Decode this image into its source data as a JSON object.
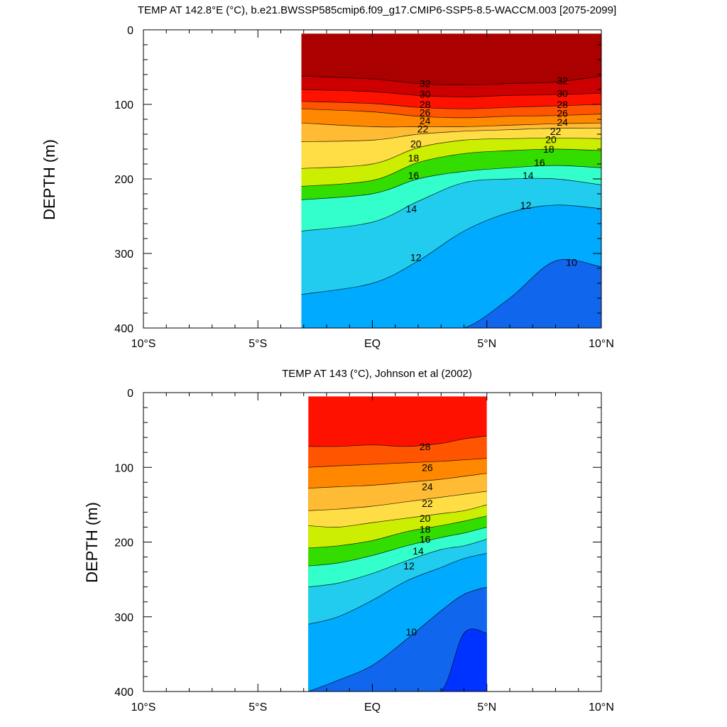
{
  "chart_data": [
    {
      "type": "contour",
      "title": "TEMP AT 142.8°E (°C), b.e21.BWSSP585cmip6.f09_g17.CMIP6-SSP5-8.5-WACCM.003 [2075-2099]",
      "xlabel": "",
      "ylabel": "DEPTH (m)",
      "xlim": [
        -10,
        10
      ],
      "ylim": [
        400,
        0
      ],
      "x_tick_values": [
        -10,
        -5,
        0,
        5,
        10
      ],
      "x_tick_labels": [
        "10°S",
        "5°S",
        "EQ",
        "5°N",
        "10°N"
      ],
      "y_tick_values": [
        0,
        100,
        200,
        300,
        400
      ],
      "y_tick_labels": [
        "0",
        "100",
        "200",
        "300",
        "400"
      ],
      "data_extent": {
        "lat": [
          -3.1,
          10
        ],
        "depth": [
          5,
          400
        ]
      },
      "x_nodes": [
        -3.1,
        0,
        2,
        4,
        6,
        8,
        10
      ],
      "isotherms": [
        {
          "value": 32,
          "depth": [
            62,
            66,
            72,
            74,
            72,
            70,
            62
          ]
        },
        {
          "value": 30,
          "depth": [
            80,
            83,
            88,
            90,
            88,
            87,
            85
          ]
        },
        {
          "value": 28,
          "depth": [
            96,
            99,
            104,
            106,
            104,
            102,
            100
          ]
        },
        {
          "value": 26,
          "depth": [
            106,
            110,
            116,
            118,
            116,
            115,
            113
          ]
        },
        {
          "value": 24,
          "depth": [
            125,
            130,
            130,
            130,
            128,
            126,
            125
          ]
        },
        {
          "value": 22,
          "depth": [
            150,
            148,
            140,
            136,
            134,
            132,
            132
          ]
        },
        {
          "value": 20,
          "depth": [
            186,
            180,
            158,
            148,
            146,
            145,
            146
          ]
        },
        {
          "value": 18,
          "depth": [
            210,
            202,
            178,
            166,
            162,
            160,
            162
          ]
        },
        {
          "value": 16,
          "depth": [
            228,
            220,
            200,
            190,
            185,
            182,
            185
          ]
        },
        {
          "value": 14,
          "depth": [
            270,
            258,
            230,
            205,
            200,
            200,
            208
          ]
        },
        {
          "value": 12,
          "depth": [
            355,
            340,
            310,
            270,
            245,
            235,
            240
          ]
        },
        {
          "value": 10,
          "depth": [
            400,
            400,
            400,
            400,
            360,
            310,
            318
          ]
        }
      ],
      "contour_labels": [
        {
          "text": "32",
          "lat": 2.3,
          "depth": 72
        },
        {
          "text": "30",
          "lat": 2.3,
          "depth": 86
        },
        {
          "text": "28",
          "lat": 2.3,
          "depth": 100
        },
        {
          "text": "26",
          "lat": 2.3,
          "depth": 111
        },
        {
          "text": "24",
          "lat": 2.3,
          "depth": 122
        },
        {
          "text": "22",
          "lat": 2.2,
          "depth": 133
        },
        {
          "text": "20",
          "lat": 1.9,
          "depth": 153
        },
        {
          "text": "18",
          "lat": 1.8,
          "depth": 172
        },
        {
          "text": "16",
          "lat": 1.8,
          "depth": 195
        },
        {
          "text": "14",
          "lat": 1.7,
          "depth": 240
        },
        {
          "text": "12",
          "lat": 1.9,
          "depth": 305
        },
        {
          "text": "32",
          "lat": 8.3,
          "depth": 68
        },
        {
          "text": "30",
          "lat": 8.3,
          "depth": 85
        },
        {
          "text": "28",
          "lat": 8.3,
          "depth": 100
        },
        {
          "text": "26",
          "lat": 8.3,
          "depth": 112
        },
        {
          "text": "24",
          "lat": 8.3,
          "depth": 124
        },
        {
          "text": "22",
          "lat": 8.0,
          "depth": 136
        },
        {
          "text": "20",
          "lat": 7.8,
          "depth": 147
        },
        {
          "text": "18",
          "lat": 7.7,
          "depth": 160
        },
        {
          "text": "16",
          "lat": 7.3,
          "depth": 178
        },
        {
          "text": "14",
          "lat": 6.8,
          "depth": 195
        },
        {
          "text": "12",
          "lat": 6.7,
          "depth": 235
        },
        {
          "text": "10",
          "lat": 8.7,
          "depth": 312
        }
      ]
    },
    {
      "type": "contour",
      "title": "TEMP AT 143 (°C), Johnson et al (2002)",
      "xlabel": "",
      "ylabel": "DEPTH (m)",
      "xlim": [
        -10,
        10
      ],
      "ylim": [
        400,
        0
      ],
      "x_tick_values": [
        -10,
        -5,
        0,
        5,
        10
      ],
      "x_tick_labels": [
        "10°S",
        "5°S",
        "EQ",
        "5°N",
        "10°N"
      ],
      "y_tick_values": [
        0,
        100,
        200,
        300,
        400
      ],
      "y_tick_labels": [
        "0",
        "100",
        "200",
        "300",
        "400"
      ],
      "data_extent": {
        "lat": [
          -2.8,
          5
        ],
        "depth": [
          5,
          400
        ]
      },
      "x_nodes": [
        -2.8,
        -1.5,
        0,
        1.5,
        3,
        4,
        5
      ],
      "isotherms": [
        {
          "value": 28,
          "depth": [
            72,
            72,
            70,
            72,
            68,
            62,
            58
          ]
        },
        {
          "value": 26,
          "depth": [
            100,
            98,
            96,
            94,
            92,
            90,
            88
          ]
        },
        {
          "value": 24,
          "depth": [
            128,
            126,
            124,
            120,
            116,
            112,
            108
          ]
        },
        {
          "value": 22,
          "depth": [
            158,
            156,
            152,
            146,
            140,
            136,
            132
          ]
        },
        {
          "value": 20,
          "depth": [
            178,
            180,
            174,
            168,
            162,
            158,
            150
          ]
        },
        {
          "value": 18,
          "depth": [
            208,
            205,
            198,
            186,
            178,
            172,
            165
          ]
        },
        {
          "value": 16,
          "depth": [
            232,
            228,
            218,
            205,
            194,
            188,
            180
          ]
        },
        {
          "value": 14,
          "depth": [
            260,
            255,
            242,
            225,
            210,
            205,
            196
          ]
        },
        {
          "value": 12,
          "depth": [
            310,
            300,
            278,
            252,
            234,
            222,
            215
          ]
        },
        {
          "value": 10,
          "depth": [
            400,
            385,
            365,
            330,
            292,
            270,
            260
          ]
        },
        {
          "value": 9,
          "depth": [
            400,
            400,
            400,
            400,
            400,
            322,
            322
          ]
        }
      ],
      "contour_labels": [
        {
          "text": "28",
          "lat": 2.3,
          "depth": 72
        },
        {
          "text": "26",
          "lat": 2.4,
          "depth": 100
        },
        {
          "text": "24",
          "lat": 2.4,
          "depth": 126
        },
        {
          "text": "22",
          "lat": 2.4,
          "depth": 148
        },
        {
          "text": "20",
          "lat": 2.3,
          "depth": 168
        },
        {
          "text": "18",
          "lat": 2.3,
          "depth": 183
        },
        {
          "text": "16",
          "lat": 2.3,
          "depth": 196
        },
        {
          "text": "14",
          "lat": 2.0,
          "depth": 212
        },
        {
          "text": "12",
          "lat": 1.6,
          "depth": 232
        },
        {
          "text": "10",
          "lat": 1.7,
          "depth": 320
        }
      ]
    }
  ],
  "colors": {
    "above_32": "#aa0000",
    "30_32": "#cc0000",
    "28_30": "#ff1100",
    "26_28": "#ff5500",
    "24_26": "#ff8800",
    "22_24": "#ffbb33",
    "20_22": "#ffdd44",
    "18_20": "#ccee00",
    "16_18": "#33dd00",
    "14_16": "#33ffcc",
    "12_14": "#22ccee",
    "10_12": "#00aaff",
    "9_10": "#1166ee",
    "below_9": "#0033ff"
  }
}
